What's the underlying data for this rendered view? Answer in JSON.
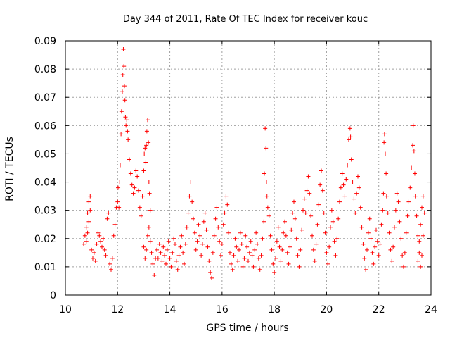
{
  "chart_data": {
    "type": "scatter",
    "title": "Day 344 of 2011, Rate Of TEC Index for receiver kouc",
    "xlabel": "GPS time / hours",
    "ylabel": "ROTI / TECUs",
    "xlim": [
      10,
      24
    ],
    "ylim": [
      0,
      0.09
    ],
    "x_ticks": [
      "10",
      "12",
      "14",
      "16",
      "18",
      "20",
      "22",
      "24"
    ],
    "y_ticks": [
      "0",
      "0.01",
      "0.02",
      "0.03",
      "0.04",
      "0.05",
      "0.06",
      "0.07",
      "0.08",
      "0.09"
    ],
    "grid": true,
    "marker": "plus",
    "color": "#ff0000",
    "series": [
      {
        "values_description_note": "",
        "points": [
          [
            10.7,
            0.018
          ],
          [
            10.75,
            0.021
          ],
          [
            10.8,
            0.024
          ],
          [
            10.85,
            0.029
          ],
          [
            10.9,
            0.033
          ],
          [
            10.95,
            0.035
          ],
          [
            10.95,
            0.03
          ],
          [
            10.9,
            0.026
          ],
          [
            10.85,
            0.022
          ],
          [
            10.8,
            0.019
          ],
          [
            11.0,
            0.016
          ],
          [
            11.05,
            0.013
          ],
          [
            11.1,
            0.015
          ],
          [
            11.15,
            0.012
          ],
          [
            11.2,
            0.018
          ],
          [
            11.25,
            0.022
          ],
          [
            11.3,
            0.021
          ],
          [
            11.35,
            0.019
          ],
          [
            11.4,
            0.017
          ],
          [
            11.45,
            0.02
          ],
          [
            11.5,
            0.016
          ],
          [
            11.55,
            0.014
          ],
          [
            11.6,
            0.027
          ],
          [
            11.65,
            0.029
          ],
          [
            11.7,
            0.011
          ],
          [
            11.75,
            0.009
          ],
          [
            11.8,
            0.013
          ],
          [
            11.85,
            0.021
          ],
          [
            11.9,
            0.025
          ],
          [
            11.95,
            0.031
          ],
          [
            12.0,
            0.033
          ],
          [
            12.02,
            0.038
          ],
          [
            12.05,
            0.031
          ],
          [
            12.08,
            0.04
          ],
          [
            12.1,
            0.046
          ],
          [
            12.13,
            0.057
          ],
          [
            12.15,
            0.065
          ],
          [
            12.18,
            0.072
          ],
          [
            12.2,
            0.078
          ],
          [
            12.22,
            0.087
          ],
          [
            12.24,
            0.081
          ],
          [
            12.26,
            0.074
          ],
          [
            12.28,
            0.069
          ],
          [
            12.3,
            0.063
          ],
          [
            12.32,
            0.06
          ],
          [
            12.35,
            0.062
          ],
          [
            12.38,
            0.058
          ],
          [
            12.4,
            0.055
          ],
          [
            12.45,
            0.048
          ],
          [
            12.5,
            0.043
          ],
          [
            12.55,
            0.039
          ],
          [
            12.6,
            0.036
          ],
          [
            12.65,
            0.038
          ],
          [
            12.7,
            0.044
          ],
          [
            12.75,
            0.042
          ],
          [
            12.8,
            0.037
          ],
          [
            12.85,
            0.031
          ],
          [
            12.9,
            0.028
          ],
          [
            12.95,
            0.035
          ],
          [
            13.0,
            0.044
          ],
          [
            13.02,
            0.05
          ],
          [
            13.05,
            0.052
          ],
          [
            13.08,
            0.047
          ],
          [
            13.1,
            0.053
          ],
          [
            13.12,
            0.058
          ],
          [
            13.15,
            0.062
          ],
          [
            13.18,
            0.054
          ],
          [
            13.2,
            0.04
          ],
          [
            13.22,
            0.036
          ],
          [
            13.25,
            0.03
          ],
          [
            13.0,
            0.017
          ],
          [
            13.05,
            0.013
          ],
          [
            13.1,
            0.016
          ],
          [
            13.15,
            0.021
          ],
          [
            13.2,
            0.024
          ],
          [
            13.25,
            0.019
          ],
          [
            13.3,
            0.015
          ],
          [
            13.35,
            0.011
          ],
          [
            13.4,
            0.007
          ],
          [
            13.45,
            0.013
          ],
          [
            13.5,
            0.016
          ],
          [
            13.55,
            0.013
          ],
          [
            13.6,
            0.018
          ],
          [
            13.65,
            0.015
          ],
          [
            13.7,
            0.012
          ],
          [
            13.75,
            0.017
          ],
          [
            13.8,
            0.014
          ],
          [
            13.85,
            0.011
          ],
          [
            13.9,
            0.016
          ],
          [
            13.95,
            0.019
          ],
          [
            14.0,
            0.013
          ],
          [
            14.05,
            0.01
          ],
          [
            14.1,
            0.015
          ],
          [
            14.15,
            0.02
          ],
          [
            14.2,
            0.018
          ],
          [
            14.25,
            0.012
          ],
          [
            14.3,
            0.009
          ],
          [
            14.35,
            0.014
          ],
          [
            14.4,
            0.017
          ],
          [
            14.45,
            0.021
          ],
          [
            14.5,
            0.015
          ],
          [
            14.55,
            0.011
          ],
          [
            14.6,
            0.018
          ],
          [
            14.65,
            0.024
          ],
          [
            14.7,
            0.029
          ],
          [
            14.75,
            0.035
          ],
          [
            14.8,
            0.04
          ],
          [
            14.85,
            0.033
          ],
          [
            14.9,
            0.027
          ],
          [
            14.95,
            0.022
          ],
          [
            15.0,
            0.016
          ],
          [
            15.05,
            0.019
          ],
          [
            15.1,
            0.025
          ],
          [
            15.15,
            0.021
          ],
          [
            15.2,
            0.014
          ],
          [
            15.25,
            0.018
          ],
          [
            15.3,
            0.026
          ],
          [
            15.35,
            0.029
          ],
          [
            15.4,
            0.023
          ],
          [
            15.45,
            0.017
          ],
          [
            15.5,
            0.012
          ],
          [
            15.55,
            0.008
          ],
          [
            15.6,
            0.006
          ],
          [
            15.65,
            0.015
          ],
          [
            15.7,
            0.021
          ],
          [
            15.75,
            0.027
          ],
          [
            15.8,
            0.031
          ],
          [
            15.85,
            0.024
          ],
          [
            15.9,
            0.019
          ],
          [
            15.95,
            0.014
          ],
          [
            16.0,
            0.018
          ],
          [
            16.05,
            0.025
          ],
          [
            16.1,
            0.029
          ],
          [
            16.15,
            0.035
          ],
          [
            16.2,
            0.032
          ],
          [
            16.25,
            0.022
          ],
          [
            16.3,
            0.015
          ],
          [
            16.35,
            0.011
          ],
          [
            16.4,
            0.009
          ],
          [
            16.45,
            0.014
          ],
          [
            16.5,
            0.02
          ],
          [
            16.55,
            0.017
          ],
          [
            16.6,
            0.012
          ],
          [
            16.65,
            0.016
          ],
          [
            16.7,
            0.022
          ],
          [
            16.75,
            0.018
          ],
          [
            16.8,
            0.01
          ],
          [
            16.85,
            0.013
          ],
          [
            16.9,
            0.021
          ],
          [
            16.95,
            0.017
          ],
          [
            17.0,
            0.012
          ],
          [
            17.05,
            0.015
          ],
          [
            17.1,
            0.019
          ],
          [
            17.15,
            0.014
          ],
          [
            17.2,
            0.01
          ],
          [
            17.25,
            0.016
          ],
          [
            17.3,
            0.022
          ],
          [
            17.35,
            0.018
          ],
          [
            17.4,
            0.013
          ],
          [
            17.45,
            0.009
          ],
          [
            17.5,
            0.014
          ],
          [
            17.55,
            0.02
          ],
          [
            17.6,
            0.026
          ],
          [
            17.62,
            0.043
          ],
          [
            17.65,
            0.059
          ],
          [
            17.68,
            0.052
          ],
          [
            17.7,
            0.04
          ],
          [
            17.72,
            0.035
          ],
          [
            17.75,
            0.031
          ],
          [
            17.8,
            0.028
          ],
          [
            17.85,
            0.021
          ],
          [
            17.9,
            0.016
          ],
          [
            17.95,
            0.011
          ],
          [
            18.0,
            0.008
          ],
          [
            18.05,
            0.013
          ],
          [
            18.1,
            0.019
          ],
          [
            18.15,
            0.024
          ],
          [
            18.2,
            0.017
          ],
          [
            18.25,
            0.012
          ],
          [
            18.3,
            0.016
          ],
          [
            18.35,
            0.022
          ],
          [
            18.4,
            0.026
          ],
          [
            18.45,
            0.021
          ],
          [
            18.5,
            0.015
          ],
          [
            18.55,
            0.011
          ],
          [
            18.6,
            0.017
          ],
          [
            18.65,
            0.023
          ],
          [
            18.7,
            0.029
          ],
          [
            18.75,
            0.033
          ],
          [
            18.8,
            0.027
          ],
          [
            18.85,
            0.02
          ],
          [
            18.9,
            0.014
          ],
          [
            18.95,
            0.01
          ],
          [
            19.0,
            0.016
          ],
          [
            19.05,
            0.023
          ],
          [
            19.1,
            0.03
          ],
          [
            19.15,
            0.034
          ],
          [
            19.2,
            0.029
          ],
          [
            19.25,
            0.037
          ],
          [
            19.3,
            0.042
          ],
          [
            19.35,
            0.036
          ],
          [
            19.4,
            0.028
          ],
          [
            19.45,
            0.021
          ],
          [
            19.5,
            0.016
          ],
          [
            19.55,
            0.012
          ],
          [
            19.6,
            0.018
          ],
          [
            19.65,
            0.025
          ],
          [
            19.7,
            0.032
          ],
          [
            19.75,
            0.039
          ],
          [
            19.8,
            0.044
          ],
          [
            19.85,
            0.037
          ],
          [
            19.9,
            0.029
          ],
          [
            19.95,
            0.022
          ],
          [
            20.0,
            0.015
          ],
          [
            20.05,
            0.011
          ],
          [
            20.1,
            0.017
          ],
          [
            20.15,
            0.024
          ],
          [
            20.2,
            0.03
          ],
          [
            20.25,
            0.026
          ],
          [
            20.3,
            0.019
          ],
          [
            20.35,
            0.014
          ],
          [
            20.4,
            0.02
          ],
          [
            20.45,
            0.027
          ],
          [
            20.5,
            0.033
          ],
          [
            20.55,
            0.038
          ],
          [
            20.6,
            0.043
          ],
          [
            20.65,
            0.039
          ],
          [
            20.7,
            0.035
          ],
          [
            20.75,
            0.041
          ],
          [
            20.8,
            0.046
          ],
          [
            20.85,
            0.055
          ],
          [
            20.9,
            0.059
          ],
          [
            20.92,
            0.056
          ],
          [
            20.95,
            0.048
          ],
          [
            21.0,
            0.04
          ],
          [
            21.05,
            0.034
          ],
          [
            21.1,
            0.029
          ],
          [
            21.15,
            0.036
          ],
          [
            21.2,
            0.042
          ],
          [
            21.25,
            0.038
          ],
          [
            21.3,
            0.031
          ],
          [
            21.35,
            0.024
          ],
          [
            21.4,
            0.018
          ],
          [
            21.45,
            0.013
          ],
          [
            21.5,
            0.009
          ],
          [
            21.55,
            0.016
          ],
          [
            21.6,
            0.022
          ],
          [
            21.65,
            0.027
          ],
          [
            21.7,
            0.02
          ],
          [
            21.75,
            0.015
          ],
          [
            21.8,
            0.011
          ],
          [
            21.85,
            0.017
          ],
          [
            21.9,
            0.023
          ],
          [
            21.95,
            0.019
          ],
          [
            22.0,
            0.014
          ],
          [
            22.05,
            0.018
          ],
          [
            22.1,
            0.025
          ],
          [
            22.15,
            0.03
          ],
          [
            22.18,
            0.036
          ],
          [
            22.2,
            0.054
          ],
          [
            22.22,
            0.057
          ],
          [
            22.25,
            0.05
          ],
          [
            22.28,
            0.043
          ],
          [
            22.3,
            0.035
          ],
          [
            22.35,
            0.029
          ],
          [
            22.4,
            0.022
          ],
          [
            22.45,
            0.016
          ],
          [
            22.5,
            0.012
          ],
          [
            22.55,
            0.017
          ],
          [
            22.6,
            0.024
          ],
          [
            22.65,
            0.03
          ],
          [
            22.7,
            0.036
          ],
          [
            22.75,
            0.033
          ],
          [
            22.8,
            0.026
          ],
          [
            22.85,
            0.02
          ],
          [
            22.9,
            0.014
          ],
          [
            22.95,
            0.01
          ],
          [
            23.0,
            0.015
          ],
          [
            23.05,
            0.022
          ],
          [
            23.1,
            0.028
          ],
          [
            23.15,
            0.033
          ],
          [
            23.2,
            0.038
          ],
          [
            23.25,
            0.045
          ],
          [
            23.3,
            0.053
          ],
          [
            23.32,
            0.06
          ],
          [
            23.35,
            0.051
          ],
          [
            23.38,
            0.043
          ],
          [
            23.4,
            0.035
          ],
          [
            23.45,
            0.028
          ],
          [
            23.5,
            0.021
          ],
          [
            23.55,
            0.015
          ],
          [
            23.6,
            0.01
          ],
          [
            23.65,
            0.014
          ],
          [
            23.7,
            0.021
          ],
          [
            23.75,
            0.029
          ],
          [
            23.7,
            0.035
          ],
          [
            23.65,
            0.031
          ],
          [
            23.6,
            0.025
          ],
          [
            23.55,
            0.019
          ],
          [
            23.5,
            0.012
          ]
        ]
      }
    ]
  }
}
